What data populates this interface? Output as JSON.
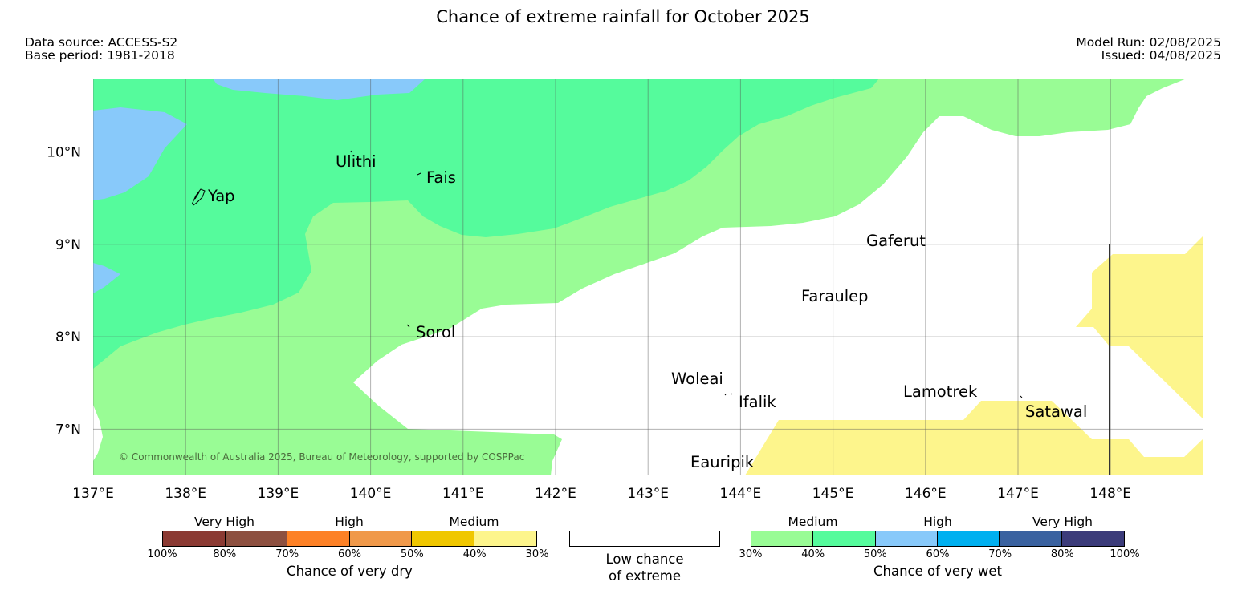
{
  "title": "Chance of extreme rainfall for October 2025",
  "meta": {
    "data_source": "Data source: ACCESS-S2",
    "base_period": "Base period: 1981-2018",
    "model_run": "Model Run: 02/08/2025",
    "issued": "Issued: 04/08/2025"
  },
  "map": {
    "lon_range": [
      137,
      149
    ],
    "lat_range": [
      6.5,
      10.8
    ],
    "x_ticks": [
      "137°E",
      "138°E",
      "139°E",
      "140°E",
      "141°E",
      "142°E",
      "143°E",
      "144°E",
      "145°E",
      "146°E",
      "147°E",
      "148°E"
    ],
    "y_ticks": [
      "10°N",
      "9°N",
      "8°N",
      "7°N"
    ],
    "copyright": "© Commonwealth of Australia 2025, Bureau of Meteorology, supported by COSPPac",
    "places": {
      "ulithi": "Ulithi",
      "fais": "Fais",
      "yap": "Yap",
      "gaferut": "Gaferut",
      "faraulep": "Faraulep",
      "sorol": "Sorol",
      "woleai": "Woleai",
      "ifalik": "Ifalik",
      "lamotrek": "Lamotrek",
      "satawal": "Satawal",
      "eauripik": "Eauripik"
    },
    "colors": {
      "wet_30_40": "#99fc95",
      "wet_40_50": "#55fb9c",
      "wet_50_60": "#88c9fa",
      "dry_30_40": "#fdf58c",
      "low_chance": "#ffffff"
    }
  },
  "legend": {
    "dry": {
      "categories": [
        "Very High",
        "High",
        "Medium"
      ],
      "ticks": [
        "100%",
        "80%",
        "70%",
        "60%",
        "50%",
        "40%",
        "30%"
      ],
      "colors": [
        "#8b3a33",
        "#8d5040",
        "#fd8126",
        "#f0994a",
        "#f0c700",
        "#fdf58c"
      ],
      "caption": "Chance of very dry"
    },
    "low": {
      "caption_line1": "Low chance",
      "caption_line2": "of extreme"
    },
    "wet": {
      "categories": [
        "Medium",
        "High",
        "Very High"
      ],
      "ticks": [
        "30%",
        "40%",
        "50%",
        "60%",
        "70%",
        "80%",
        "100%"
      ],
      "colors": [
        "#99fc95",
        "#55fb9c",
        "#88c9fa",
        "#00b0f0",
        "#3a62a0",
        "#3b3b7a"
      ],
      "caption": "Chance of very wet"
    }
  }
}
